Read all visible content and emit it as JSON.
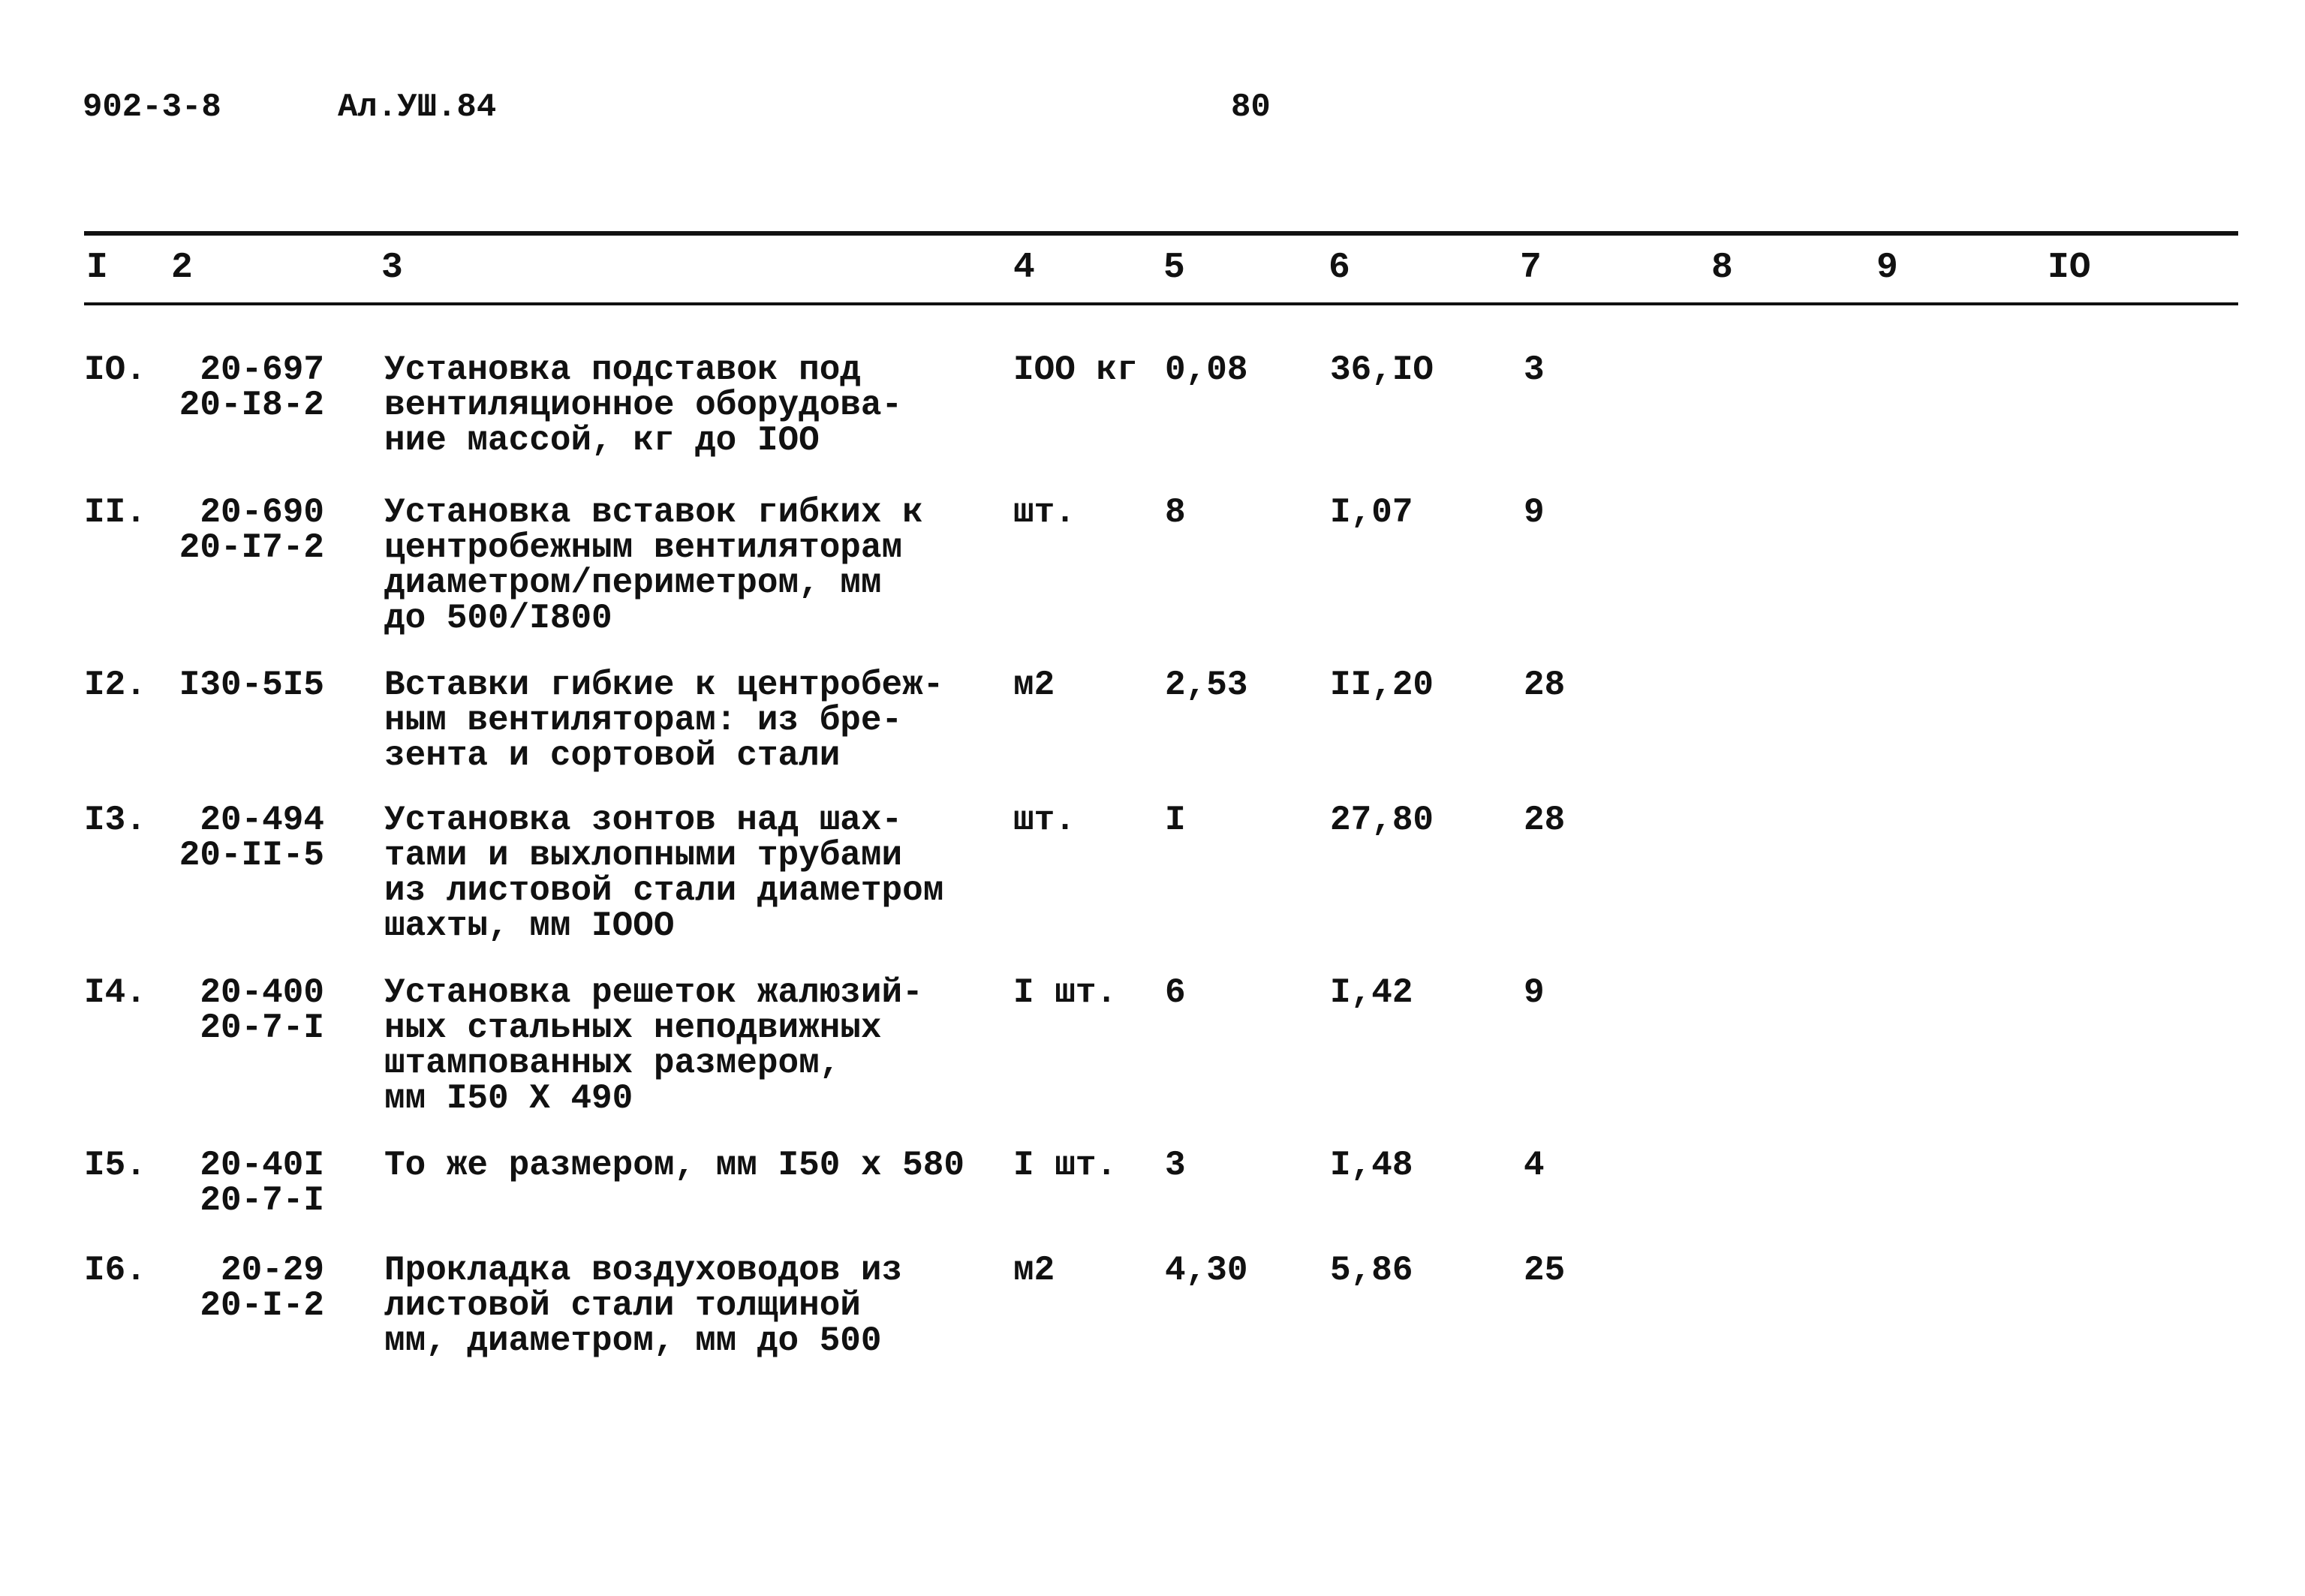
{
  "header": {
    "doc_code": "902-3-8",
    "album": "Ал.УШ.84",
    "page_number": "80"
  },
  "columns": [
    "I",
    "2",
    "3",
    "4",
    "5",
    "6",
    "7",
    "8",
    "9",
    "IO"
  ],
  "rows": [
    {
      "num": "IO.",
      "code": "20-697\n20-I8-2",
      "desc": "Установка подставок под\nвентиляционное оборудова-\nние массой, кг до IOO",
      "unit": "IOO кг",
      "qty": "0,08",
      "price": "36,IO",
      "c7": "3"
    },
    {
      "num": "II.",
      "code": "20-690\n20-I7-2",
      "desc": "Установка вставок гибких к\nцентробежным вентиляторам\nдиаметром/периметром, мм\nдо 500/I800",
      "unit": "шт.",
      "qty": "8",
      "price": "I,07",
      "c7": "9"
    },
    {
      "num": "I2.",
      "code": "I30-5I5",
      "desc": "Вставки гибкие к центробеж-\nным вентиляторам: из бре-\nзента и сортовой стали",
      "unit": "м2",
      "qty": "2,53",
      "price": "II,20",
      "c7": "28"
    },
    {
      "num": "I3.",
      "code": "20-494\n20-II-5",
      "desc": "Установка зонтов над шах-\nтами и выхлопными трубами\nиз листовой стали диаметром\nшахты, мм IOOO",
      "unit": "шт.",
      "qty": "I",
      "price": "27,80",
      "c7": "28"
    },
    {
      "num": "I4.",
      "code": "20-400\n20-7-I",
      "desc": "Установка решеток жалюзий-\nных стальных неподвижных\nштампованных размером,\nмм I50 X 490",
      "unit": "I шт.",
      "qty": "6",
      "price": "I,42",
      "c7": "9"
    },
    {
      "num": "I5.",
      "code": "20-40I\n20-7-I",
      "desc": "То же размером, мм I50 x 580",
      "unit": "I шт.",
      "qty": "3",
      "price": "I,48",
      "c7": "4"
    },
    {
      "num": "I6.",
      "code": "20-29\n20-I-2",
      "desc": "Прокладка воздуховодов из\nлистовой стали толщиной\nмм, диаметром, мм до 500",
      "unit": "м2",
      "qty": "4,30",
      "price": "5,86",
      "c7": "25"
    }
  ]
}
